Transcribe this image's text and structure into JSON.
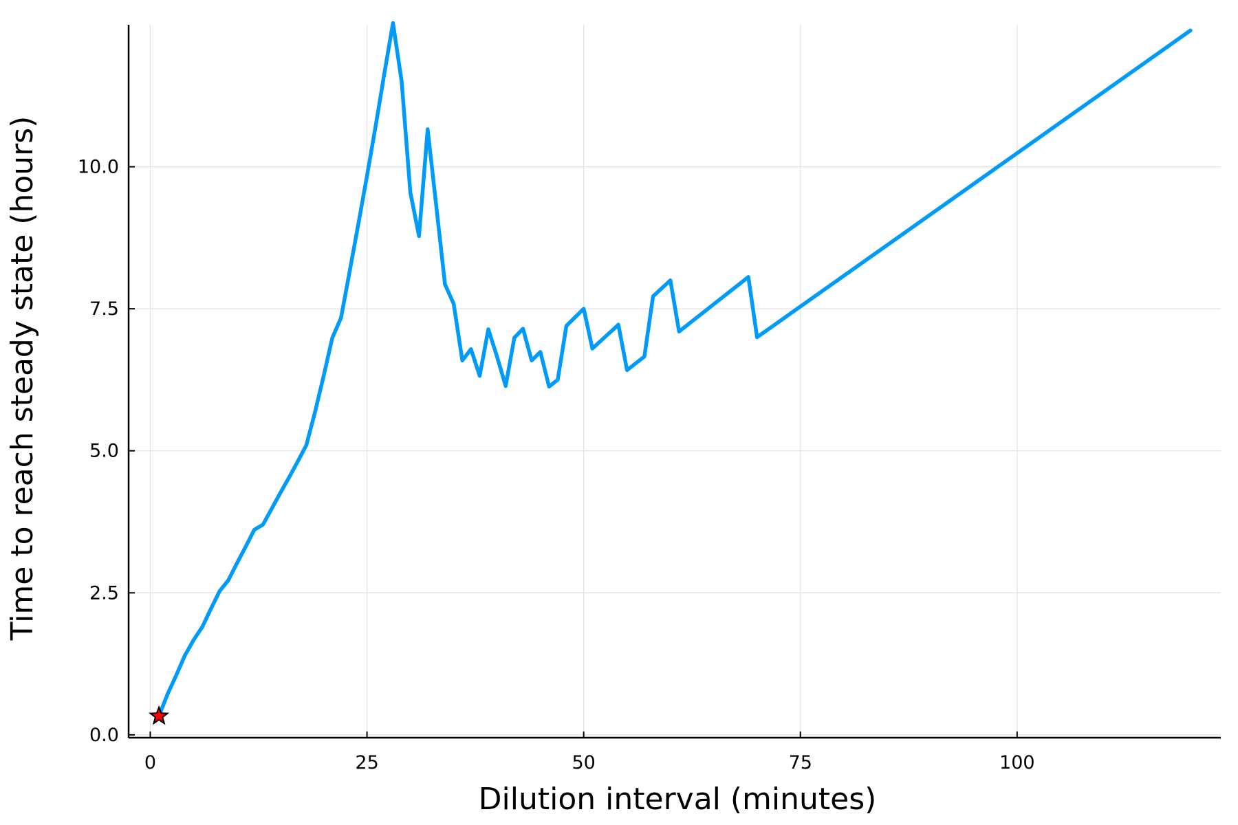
{
  "chart_data": {
    "type": "line",
    "title": "",
    "xlabel": "Dilution interval (minutes)",
    "ylabel": "Time to reach steady state (hours)",
    "xlim": [
      -2.5,
      123.5
    ],
    "ylim": [
      -0.05,
      12.5
    ],
    "xticks": [
      0,
      25,
      50,
      75,
      100
    ],
    "xtick_labels": [
      "0",
      "25",
      "50",
      "75",
      "100"
    ],
    "yticks": [
      0.0,
      2.5,
      5.0,
      7.5,
      10.0
    ],
    "ytick_labels": [
      "0.0",
      "2.5",
      "5.0",
      "7.5",
      "10.0"
    ],
    "grid": true,
    "legend": "none",
    "series": [
      {
        "color": "#009af9",
        "x": [
          1,
          2,
          3,
          4,
          5,
          6,
          7,
          8,
          9,
          10,
          11,
          12,
          13,
          14,
          15,
          16,
          17,
          18,
          19,
          20,
          21,
          22,
          23,
          24,
          25,
          26,
          27,
          28,
          29,
          30,
          31,
          32,
          33,
          34,
          35,
          36,
          37,
          38,
          39,
          40,
          41,
          42,
          43,
          44,
          45,
          46,
          47,
          48,
          49,
          50,
          51,
          52,
          53,
          54,
          55,
          56,
          57,
          58,
          59,
          60,
          61,
          62,
          63,
          64,
          65,
          66,
          67,
          68,
          69,
          70,
          120
        ],
        "y": [
          0.33,
          0.72,
          1.05,
          1.4,
          1.67,
          1.9,
          2.22,
          2.53,
          2.72,
          3.02,
          3.31,
          3.61,
          3.7,
          3.98,
          4.26,
          4.53,
          4.81,
          5.1,
          5.68,
          6.32,
          6.99,
          7.34,
          8.16,
          8.99,
          9.84,
          10.72,
          11.64,
          12.53,
          11.5,
          9.55,
          8.78,
          10.66,
          9.3,
          7.93,
          7.59,
          6.59,
          6.79,
          6.32,
          7.14,
          6.66,
          6.14,
          6.99,
          7.15,
          6.59,
          6.74,
          6.13,
          6.25,
          7.2,
          7.35,
          7.5,
          6.8,
          6.94,
          7.08,
          7.22,
          6.42,
          6.54,
          6.66,
          7.72,
          7.86,
          8.0,
          7.1,
          7.22,
          7.34,
          7.46,
          7.58,
          7.7,
          7.82,
          7.94,
          8.06,
          7.0,
          12.4
        ]
      }
    ],
    "markers": [
      {
        "x": 1,
        "y": 0.33,
        "shape": "star",
        "color": "#ff0000",
        "edge_color": "#000000"
      }
    ]
  }
}
